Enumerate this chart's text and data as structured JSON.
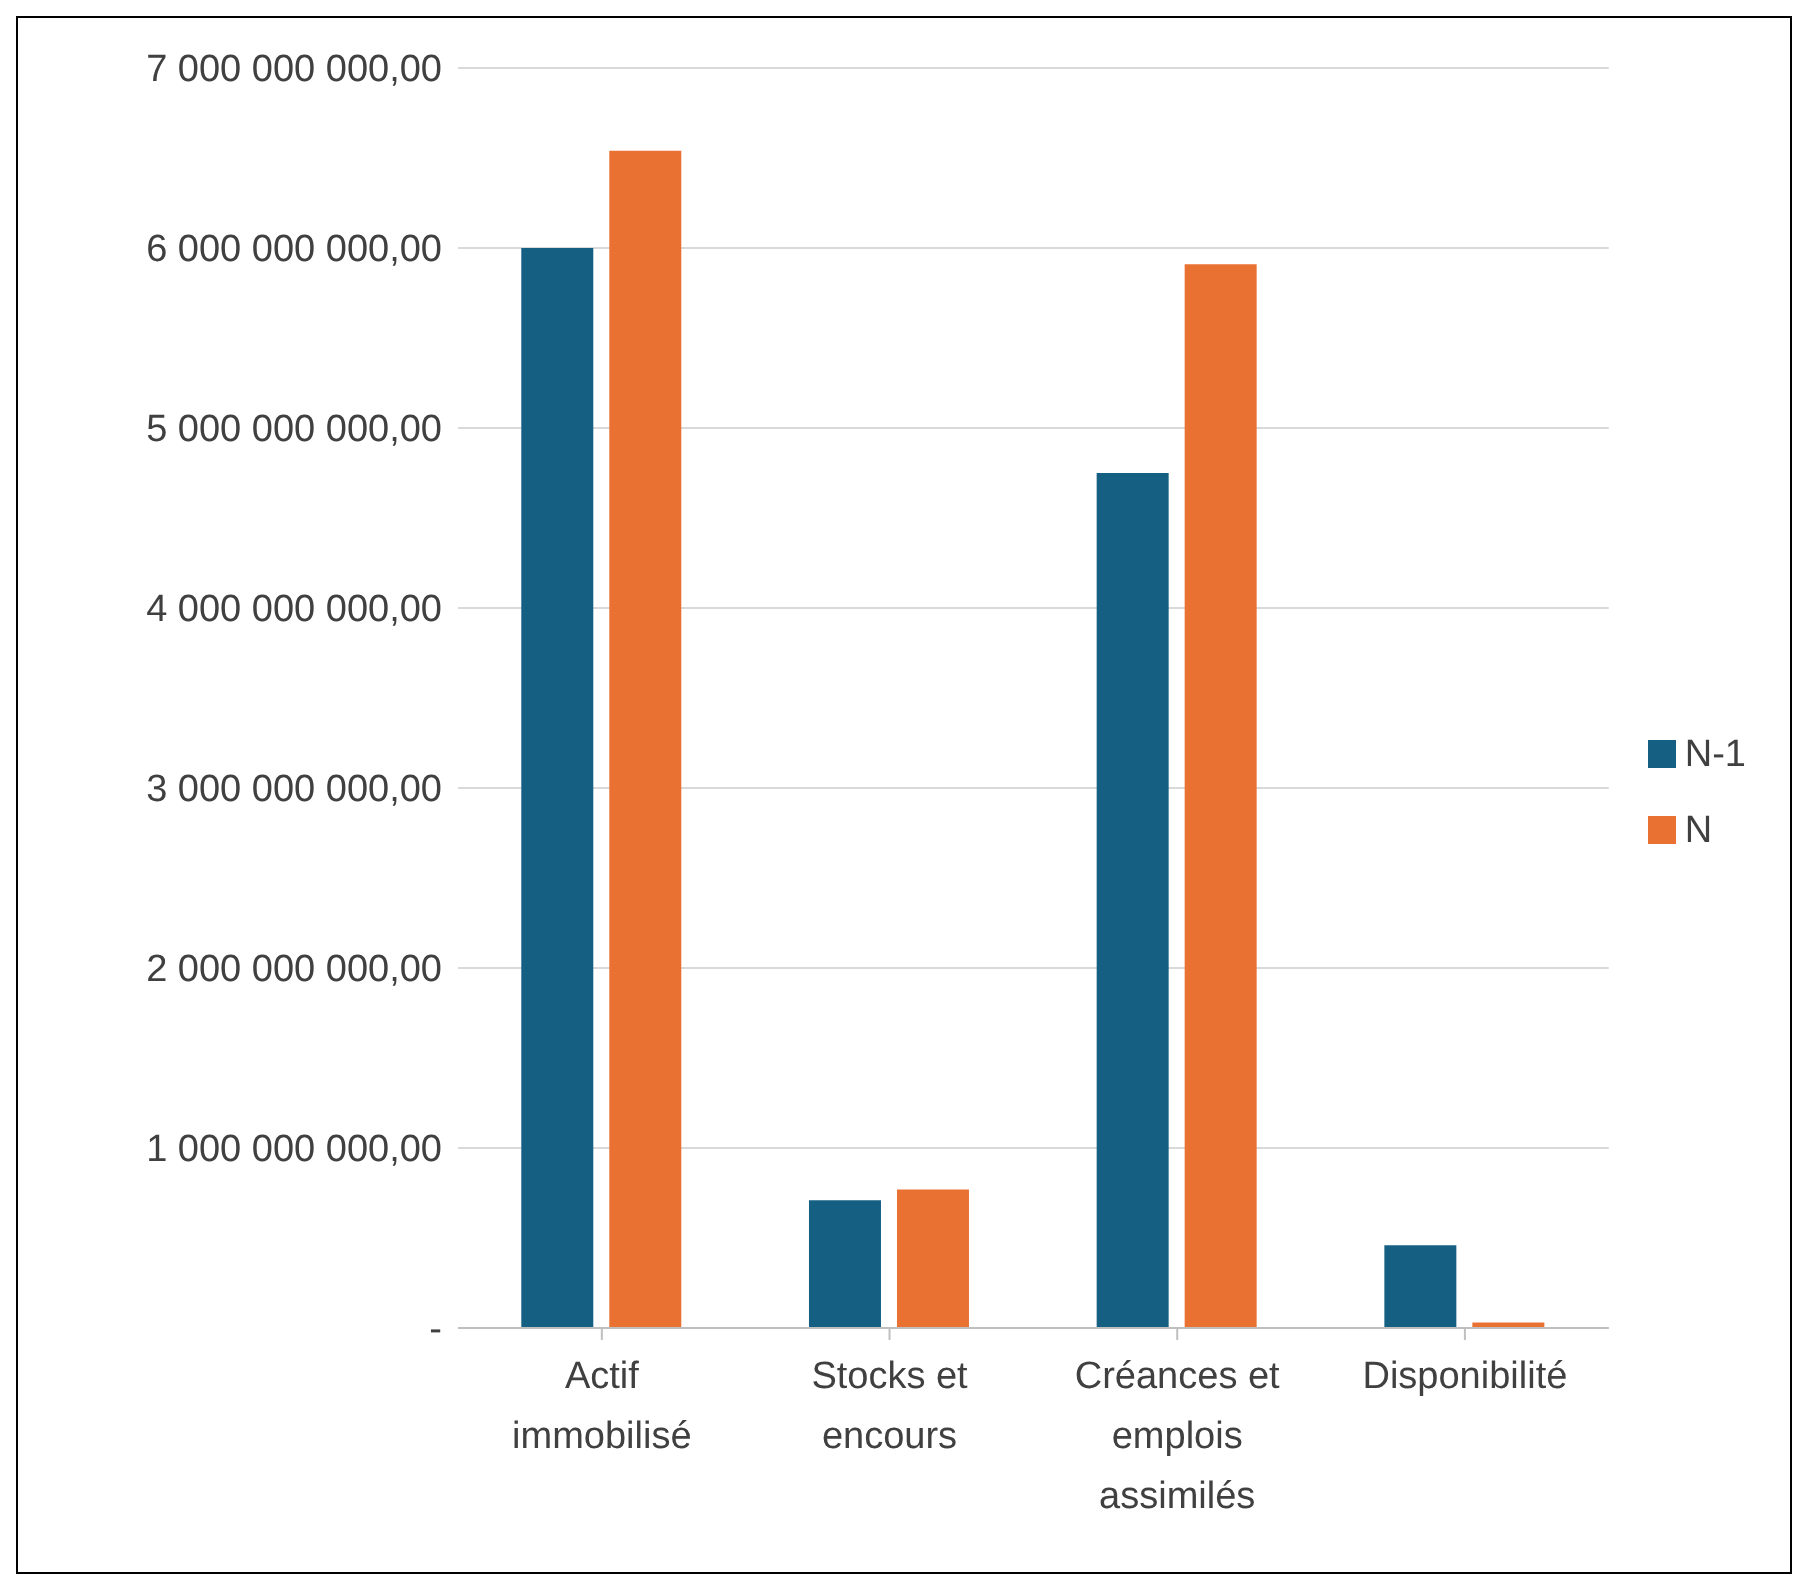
{
  "chart_data": {
    "type": "bar",
    "categories": [
      "Actif immobilisé",
      "Stocks et encours",
      "Créances et emplois assimilés",
      "Disponibilité"
    ],
    "series": [
      {
        "name": "N-1",
        "color": "#156082",
        "values": [
          6000000000,
          710000000,
          4750000000,
          460000000
        ]
      },
      {
        "name": "N",
        "color": "#e97132",
        "values": [
          6540000000,
          770000000,
          5910000000,
          30000000
        ]
      }
    ],
    "ylim": [
      0,
      7000000000
    ],
    "yticks": [
      {
        "value": 0,
        "label": "-"
      },
      {
        "value": 1000000000,
        "label": "1 000 000 000,00"
      },
      {
        "value": 2000000000,
        "label": "2 000 000 000,00"
      },
      {
        "value": 3000000000,
        "label": "3 000 000 000,00"
      },
      {
        "value": 4000000000,
        "label": "4 000 000 000,00"
      },
      {
        "value": 5000000000,
        "label": "5 000 000 000,00"
      },
      {
        "value": 6000000000,
        "label": "6 000 000 000,00"
      },
      {
        "value": 7000000000,
        "label": "7 000 000 000,00"
      }
    ],
    "grid": "y",
    "legend": "right"
  }
}
